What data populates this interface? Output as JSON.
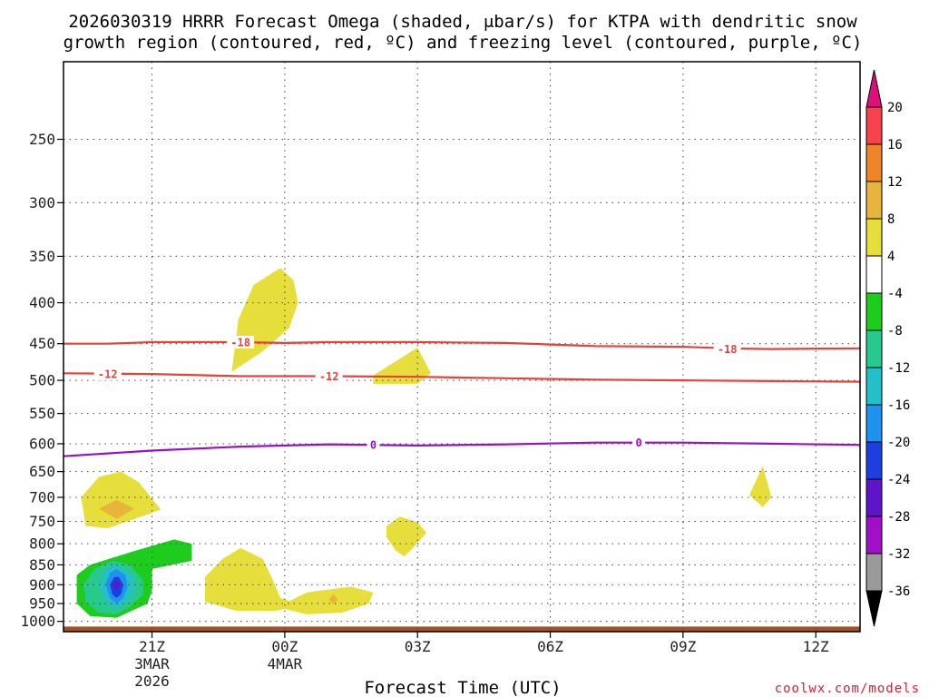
{
  "chart_data": {
    "type": "contour",
    "title_line1": "2026030319 HRRR Forecast Omega (shaded, μbar/s) for KTPA with dendritic snow",
    "title_line2": "growth region (contoured, red, ºC) and freezing level (contoured, purple, ºC)",
    "xlabel": "Forecast Time (UTC)",
    "credit": "coolwx.com/models",
    "x_range_hours": [
      0,
      18
    ],
    "y_range_mb": [
      200,
      1030
    ],
    "x_ticks": [
      {
        "hour": 2,
        "label": "21Z",
        "sub1": "3MAR",
        "sub2": "2026"
      },
      {
        "hour": 5,
        "label": "00Z",
        "sub1": "4MAR",
        "sub2": ""
      },
      {
        "hour": 8,
        "label": "03Z",
        "sub1": "",
        "sub2": ""
      },
      {
        "hour": 11,
        "label": "06Z",
        "sub1": "",
        "sub2": ""
      },
      {
        "hour": 14,
        "label": "09Z",
        "sub1": "",
        "sub2": ""
      },
      {
        "hour": 17,
        "label": "12Z",
        "sub1": "",
        "sub2": ""
      }
    ],
    "y_ticks": [
      250,
      300,
      350,
      400,
      450,
      500,
      550,
      600,
      650,
      700,
      750,
      800,
      850,
      900,
      950,
      1000
    ],
    "contours": [
      {
        "name": "dendritic-top",
        "label": "-18",
        "color": "#e8403a",
        "points": [
          [
            0,
            450
          ],
          [
            1,
            450
          ],
          [
            2,
            448
          ],
          [
            4,
            448
          ],
          [
            5,
            449
          ],
          [
            6,
            448
          ],
          [
            8,
            448
          ],
          [
            10,
            449
          ],
          [
            12,
            453
          ],
          [
            14,
            454
          ],
          [
            15,
            456
          ],
          [
            16,
            457
          ],
          [
            18,
            456
          ]
        ],
        "label_at": [
          [
            4,
            448
          ],
          [
            15,
            457
          ]
        ]
      },
      {
        "name": "dendritic-bottom",
        "label": "-12",
        "color": "#e8403a",
        "points": [
          [
            0,
            490
          ],
          [
            2,
            491
          ],
          [
            4,
            494
          ],
          [
            6,
            494
          ],
          [
            8,
            495
          ],
          [
            10,
            497
          ],
          [
            12,
            499
          ],
          [
            14,
            500
          ],
          [
            16,
            501
          ],
          [
            18,
            502
          ]
        ],
        "label_at": [
          [
            1,
            491
          ],
          [
            6,
            494
          ]
        ]
      },
      {
        "name": "freezing-level",
        "label": "0",
        "color": "#9a0fc9",
        "points": [
          [
            0,
            622
          ],
          [
            2,
            612
          ],
          [
            4,
            605
          ],
          [
            6,
            601
          ],
          [
            8,
            603
          ],
          [
            10,
            601
          ],
          [
            12,
            598
          ],
          [
            14,
            598
          ],
          [
            16,
            600
          ],
          [
            18,
            602
          ]
        ],
        "label_at": [
          [
            7,
            602
          ],
          [
            13,
            598
          ]
        ]
      }
    ],
    "terrain": {
      "color": "#a0522d",
      "top_mb": 1015
    },
    "colorbar": {
      "labels": [
        "20",
        "16",
        "12",
        "8",
        "4",
        "-4",
        "-8",
        "-12",
        "-16",
        "-20",
        "-24",
        "-28",
        "-32",
        "-36"
      ],
      "colors": [
        "#dc0f7d",
        "#f5424d",
        "#ef852a",
        "#e7b43c",
        "#e6de3a",
        "#ffffff",
        "#1dcc1d",
        "#27c98d",
        "#25bfc7",
        "#1e92ee",
        "#1e3fe0",
        "#5e14c9",
        "#a10fc9",
        "#9a9a9a",
        "#000000"
      ]
    },
    "shaded_regions": [
      {
        "name": "omega-yellow-1",
        "value": 4,
        "color": "#e6de3a",
        "points": [
          [
            3.8,
            488
          ],
          [
            3.95,
            420
          ],
          [
            4.3,
            380
          ],
          [
            4.9,
            362
          ],
          [
            5.2,
            375
          ],
          [
            5.3,
            400
          ],
          [
            5.1,
            430
          ],
          [
            4.5,
            460
          ]
        ]
      },
      {
        "name": "omega-yellow-2",
        "value": 4,
        "color": "#e6de3a",
        "points": [
          [
            7.0,
            493
          ],
          [
            7.6,
            470
          ],
          [
            8.0,
            455
          ],
          [
            8.3,
            490
          ],
          [
            8.0,
            505
          ],
          [
            7.0,
            505
          ]
        ]
      },
      {
        "name": "omega-yellow-3",
        "value": 4,
        "color": "#e6de3a",
        "points": [
          [
            0.4,
            700
          ],
          [
            0.8,
            660
          ],
          [
            1.3,
            650
          ],
          [
            1.7,
            670
          ],
          [
            2.2,
            725
          ],
          [
            1.6,
            745
          ],
          [
            1.0,
            765
          ],
          [
            0.5,
            760
          ]
        ]
      },
      {
        "name": "omega-orange-1",
        "value": 8,
        "color": "#e7b43c",
        "points": [
          [
            0.8,
            723
          ],
          [
            1.2,
            705
          ],
          [
            1.6,
            723
          ],
          [
            1.2,
            745
          ]
        ]
      },
      {
        "name": "omega-yellow-4",
        "value": 4,
        "color": "#e6de3a",
        "points": [
          [
            7.3,
            760
          ],
          [
            7.6,
            740
          ],
          [
            8.0,
            752
          ],
          [
            8.2,
            775
          ],
          [
            7.9,
            810
          ],
          [
            7.7,
            830
          ],
          [
            7.5,
            815
          ],
          [
            7.3,
            785
          ]
        ]
      },
      {
        "name": "omega-yellow-5",
        "value": 4,
        "color": "#e6de3a",
        "points": [
          [
            15.5,
            695
          ],
          [
            15.8,
            640
          ],
          [
            16.0,
            700
          ],
          [
            15.8,
            720
          ]
        ]
      },
      {
        "name": "omega-yellow-6",
        "value": 4,
        "color": "#e6de3a",
        "points": [
          [
            3.2,
            880
          ],
          [
            3.6,
            835
          ],
          [
            4.0,
            810
          ],
          [
            4.5,
            835
          ],
          [
            4.7,
            880
          ],
          [
            4.9,
            935
          ],
          [
            5.4,
            955
          ],
          [
            4.8,
            970
          ],
          [
            3.9,
            970
          ],
          [
            3.2,
            945
          ]
        ]
      },
      {
        "name": "omega-yellow-7",
        "value": 4,
        "color": "#e6de3a",
        "points": [
          [
            5.0,
            950
          ],
          [
            5.5,
            920
          ],
          [
            6.5,
            905
          ],
          [
            7.0,
            920
          ],
          [
            6.9,
            950
          ],
          [
            6.3,
            975
          ],
          [
            5.5,
            980
          ],
          [
            5.0,
            965
          ]
        ]
      },
      {
        "name": "omega-orange-2",
        "value": 8,
        "color": "#e7b43c",
        "points": [
          [
            6.0,
            940
          ],
          [
            6.1,
            925
          ],
          [
            6.2,
            940
          ],
          [
            6.1,
            952
          ]
        ]
      },
      {
        "name": "omega-green-1",
        "value": -4,
        "color": "#1dcc1d",
        "points": [
          [
            0.3,
            875
          ],
          [
            0.6,
            850
          ],
          [
            1.5,
            820
          ],
          [
            2.5,
            790
          ],
          [
            2.9,
            800
          ],
          [
            2.9,
            840
          ],
          [
            2.0,
            860
          ],
          [
            2.0,
            915
          ],
          [
            1.9,
            950
          ],
          [
            1.2,
            990
          ],
          [
            0.6,
            985
          ],
          [
            0.3,
            950
          ]
        ]
      },
      {
        "name": "omega-teal-1",
        "value": -8,
        "color": "#27c98d",
        "points": [
          [
            0.45,
            900
          ],
          [
            0.7,
            860
          ],
          [
            1.1,
            840
          ],
          [
            1.5,
            850
          ],
          [
            1.8,
            890
          ],
          [
            1.8,
            925
          ],
          [
            1.5,
            960
          ],
          [
            1.2,
            980
          ],
          [
            0.8,
            975
          ],
          [
            0.5,
            945
          ]
        ]
      },
      {
        "name": "omega-cyan-1",
        "value": -12,
        "color": "#25bfc7",
        "points": [
          [
            0.8,
            900
          ],
          [
            0.95,
            860
          ],
          [
            1.2,
            848
          ],
          [
            1.55,
            875
          ],
          [
            1.6,
            910
          ],
          [
            1.45,
            945
          ],
          [
            1.2,
            965
          ],
          [
            0.95,
            945
          ]
        ]
      },
      {
        "name": "omega-lightblue-1",
        "value": -16,
        "color": "#1e92ee",
        "points": [
          [
            0.95,
            900
          ],
          [
            1.05,
            870
          ],
          [
            1.2,
            860
          ],
          [
            1.4,
            875
          ],
          [
            1.45,
            905
          ],
          [
            1.35,
            935
          ],
          [
            1.2,
            950
          ],
          [
            1.05,
            935
          ]
        ]
      },
      {
        "name": "omega-blue-1",
        "value": -20,
        "color": "#1e3fe0",
        "points": [
          [
            1.05,
            900
          ],
          [
            1.15,
            880
          ],
          [
            1.25,
            880
          ],
          [
            1.35,
            900
          ],
          [
            1.3,
            925
          ],
          [
            1.2,
            935
          ],
          [
            1.1,
            925
          ]
        ]
      },
      {
        "name": "omega-purple-1",
        "value": -28,
        "color": "#5e14c9",
        "points": [
          [
            1.12,
            900
          ],
          [
            1.2,
            888
          ],
          [
            1.28,
            900
          ],
          [
            1.2,
            915
          ]
        ]
      }
    ]
  }
}
